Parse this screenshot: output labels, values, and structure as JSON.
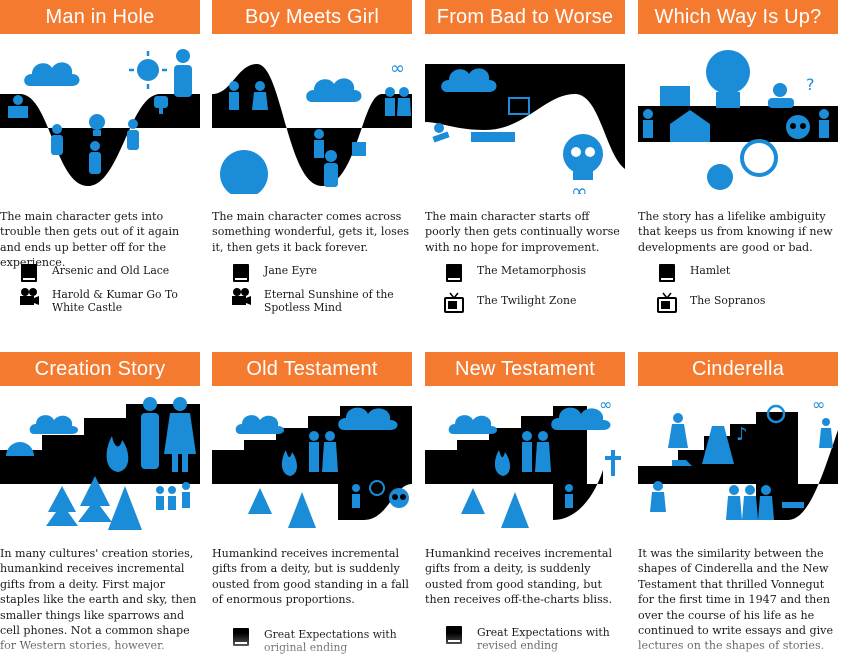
{
  "colors": {
    "accent": "#f47a30",
    "icon_blue": "#1a8cd8",
    "black": "#000000"
  },
  "panels": [
    {
      "title": "Man in Hole",
      "description": "The main character gets into trouble then gets out of it again and ends up better off for the experience.",
      "examples": [
        {
          "icon": "book-icon",
          "label": "Arsenic and Old Lace"
        },
        {
          "icon": "film-camera-icon",
          "label": "Harold & Kumar Go To White Castle"
        }
      ]
    },
    {
      "title": "Boy Meets Girl",
      "description": "The main character comes across something wonderful, gets it, loses it, then gets it back forever.",
      "examples": [
        {
          "icon": "book-icon",
          "label": "Jane Eyre"
        },
        {
          "icon": "film-camera-icon",
          "label": "Eternal Sunshine of the Spotless Mind"
        }
      ]
    },
    {
      "title": "From Bad to Worse",
      "description": "The main character starts off poorly then gets continually worse with no hope for improvement.",
      "examples": [
        {
          "icon": "book-icon",
          "label": "The Metamorphosis"
        },
        {
          "icon": "tv-icon",
          "label": "The Twilight Zone"
        }
      ]
    },
    {
      "title": "Which Way Is Up?",
      "description": "The story has a lifelike ambiguity that keeps us from knowing if new developments are good or bad.",
      "examples": [
        {
          "icon": "book-icon",
          "label": "Hamlet"
        },
        {
          "icon": "tv-icon",
          "label": "The Sopranos"
        }
      ]
    },
    {
      "title": "Creation Story",
      "description": "In many cultures' creation stories, humankind receives incremental gifts from a deity. First major staples like the earth and sky, then smaller things like sparrows and cell phones. Not a common shape for Western stories, however.",
      "examples": []
    },
    {
      "title": "Old Testament",
      "description": "Humankind receives incremental gifts from a deity, but is suddenly ousted from good standing in a fall of enormous proportions.",
      "examples": [
        {
          "icon": "book-icon",
          "label": "Great Expectations with original ending"
        }
      ]
    },
    {
      "title": "New Testament",
      "description": "Humankind receives incremental gifts from a deity, is suddenly ousted from good standing, but then receives off-the-charts bliss.",
      "examples": [
        {
          "icon": "book-icon",
          "label": "Great Expectations with revised ending"
        }
      ]
    },
    {
      "title": "Cinderella",
      "description": "It was the similarity between the shapes of Cinderella and the New Testament that thrilled Vonnegut for the first time in 1947 and then over the course of his life as he continued to write essays and give lectures on the shapes of stories.",
      "examples": []
    }
  ]
}
